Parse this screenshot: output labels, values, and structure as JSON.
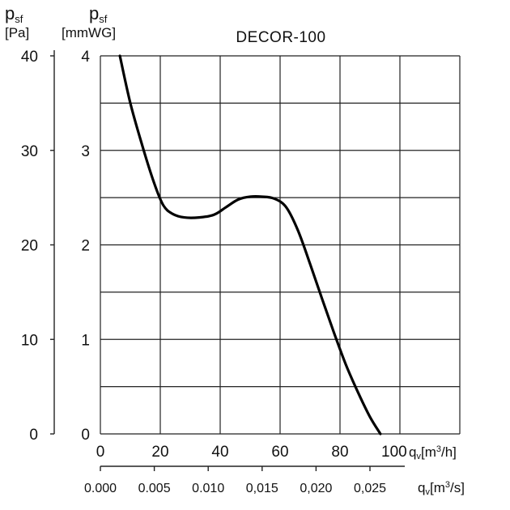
{
  "chart_data": {
    "type": "line",
    "title": "DECOR-100",
    "y_left": {
      "symbol": "p",
      "sub": "sf",
      "unit": "[Pa]",
      "ticks": [
        "0",
        "10",
        "20",
        "30",
        "40"
      ],
      "range": [
        0,
        40
      ]
    },
    "y_right": {
      "symbol": "p",
      "sub": "sf",
      "unit": "[mmWG]",
      "ticks": [
        "0",
        "1",
        "2",
        "3",
        "4"
      ],
      "range": [
        0,
        4
      ]
    },
    "x_top": {
      "ticks": [
        "0",
        "20",
        "40",
        "60",
        "80",
        "100"
      ],
      "range": [
        0,
        120
      ],
      "label_symbol": "q",
      "label_sub": "v",
      "label_unit_prefix": "[m",
      "label_unit_sup": "3",
      "label_unit_suffix": "/h]"
    },
    "x_bottom": {
      "ticks": [
        "0.000",
        "0.005",
        "0.010",
        "0,015",
        "0,020",
        "0,025"
      ],
      "values": [
        0.0,
        0.005,
        0.01,
        0.015,
        0.02,
        0.025
      ],
      "label_symbol": "q",
      "label_sub": "v",
      "label_unit_prefix": "[m",
      "label_unit_sup": "3",
      "label_unit_suffix": "/s]"
    },
    "grid": true,
    "series": [
      {
        "x": [
          6.5,
          10,
          14,
          18,
          21,
          24,
          28,
          33,
          38,
          42,
          46,
          50,
          54,
          58,
          62,
          66,
          70,
          74,
          78,
          82,
          86,
          90,
          93.5
        ],
        "y": [
          40,
          35,
          30.5,
          26.5,
          24.2,
          23.3,
          22.9,
          22.9,
          23.2,
          24.0,
          24.8,
          25.1,
          25.1,
          24.9,
          24.0,
          21.5,
          18.0,
          14.3,
          10.7,
          7.3,
          4.4,
          1.8,
          0
        ]
      }
    ]
  }
}
